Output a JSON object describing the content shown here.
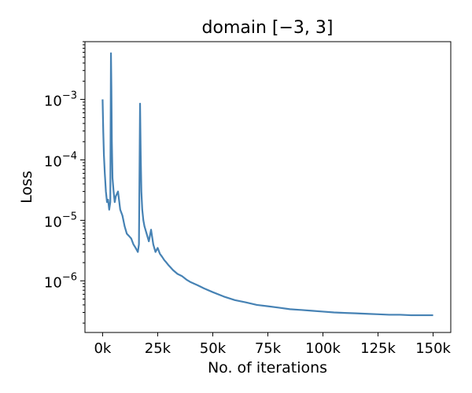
{
  "chart_data": {
    "type": "line",
    "title": "domain [−3, 3]",
    "xlabel": "No. of iterations",
    "ylabel": "Loss",
    "xlim": [
      -8000,
      158000
    ],
    "ylim": [
      1.4e-07,
      0.009
    ],
    "yscale": "log",
    "grid": false,
    "line_color": "#4682b4",
    "x_ticks": [
      {
        "value": 0,
        "label": "0k"
      },
      {
        "value": 25000,
        "label": "25k"
      },
      {
        "value": 50000,
        "label": "50k"
      },
      {
        "value": 75000,
        "label": "75k"
      },
      {
        "value": 100000,
        "label": "100k"
      },
      {
        "value": 125000,
        "label": "125k"
      },
      {
        "value": 150000,
        "label": "150k"
      }
    ],
    "y_ticks": [
      {
        "value": 0.001,
        "base": "10",
        "exp": "−3"
      },
      {
        "value": 0.0001,
        "base": "10",
        "exp": "−4"
      },
      {
        "value": 1e-05,
        "base": "10",
        "exp": "−5"
      },
      {
        "value": 1e-06,
        "base": "10",
        "exp": "−6"
      }
    ],
    "series": [
      {
        "x": [
          0,
          300,
          600,
          1000,
          1500,
          2000,
          2500,
          3000,
          3500,
          3800,
          4000,
          4200,
          4500,
          5000,
          5500,
          6000,
          7000,
          8000,
          9000,
          10000,
          11000,
          12000,
          13000,
          14000,
          15000,
          16000,
          16500,
          17000,
          17300,
          17600,
          18000,
          18500,
          19000,
          20000,
          21000,
          22000,
          23000,
          24000,
          25000,
          26000,
          27000,
          28000,
          29000,
          30000,
          32000,
          34000,
          36000,
          38000,
          40000,
          43000,
          46000,
          50000,
          55000,
          60000,
          65000,
          70000,
          75000,
          80000,
          85000,
          90000,
          95000,
          100000,
          105000,
          110000,
          115000,
          120000,
          125000,
          130000,
          135000,
          140000,
          145000,
          150000
        ],
        "y": [
          0.001,
          0.0003,
          0.00012,
          6e-05,
          3e-05,
          2e-05,
          2.2e-05,
          1.5e-05,
          2e-05,
          0.0058,
          0.0015,
          0.0002,
          5e-05,
          3e-05,
          2e-05,
          2.5e-05,
          3e-05,
          1.5e-05,
          1.2e-05,
          8e-06,
          6e-06,
          5.5e-06,
          5e-06,
          4e-06,
          3.5e-06,
          3e-06,
          4e-06,
          0.00085,
          0.00012,
          3e-05,
          1.5e-05,
          1e-05,
          8e-06,
          6e-06,
          4.5e-06,
          7e-06,
          4e-06,
          3e-06,
          3.5e-06,
          2.8e-06,
          2.5e-06,
          2.2e-06,
          2e-06,
          1.8e-06,
          1.5e-06,
          1.3e-06,
          1.2e-06,
          1.05e-06,
          9.5e-07,
          8.5e-07,
          7.5e-07,
          6.5e-07,
          5.5e-07,
          4.8e-07,
          4.4e-07,
          4e-07,
          3.8e-07,
          3.6e-07,
          3.4e-07,
          3.3e-07,
          3.2e-07,
          3.1e-07,
          3e-07,
          2.95e-07,
          2.9e-07,
          2.85e-07,
          2.8e-07,
          2.75e-07,
          2.75e-07,
          2.7e-07,
          2.7e-07,
          2.7e-07
        ]
      }
    ]
  }
}
